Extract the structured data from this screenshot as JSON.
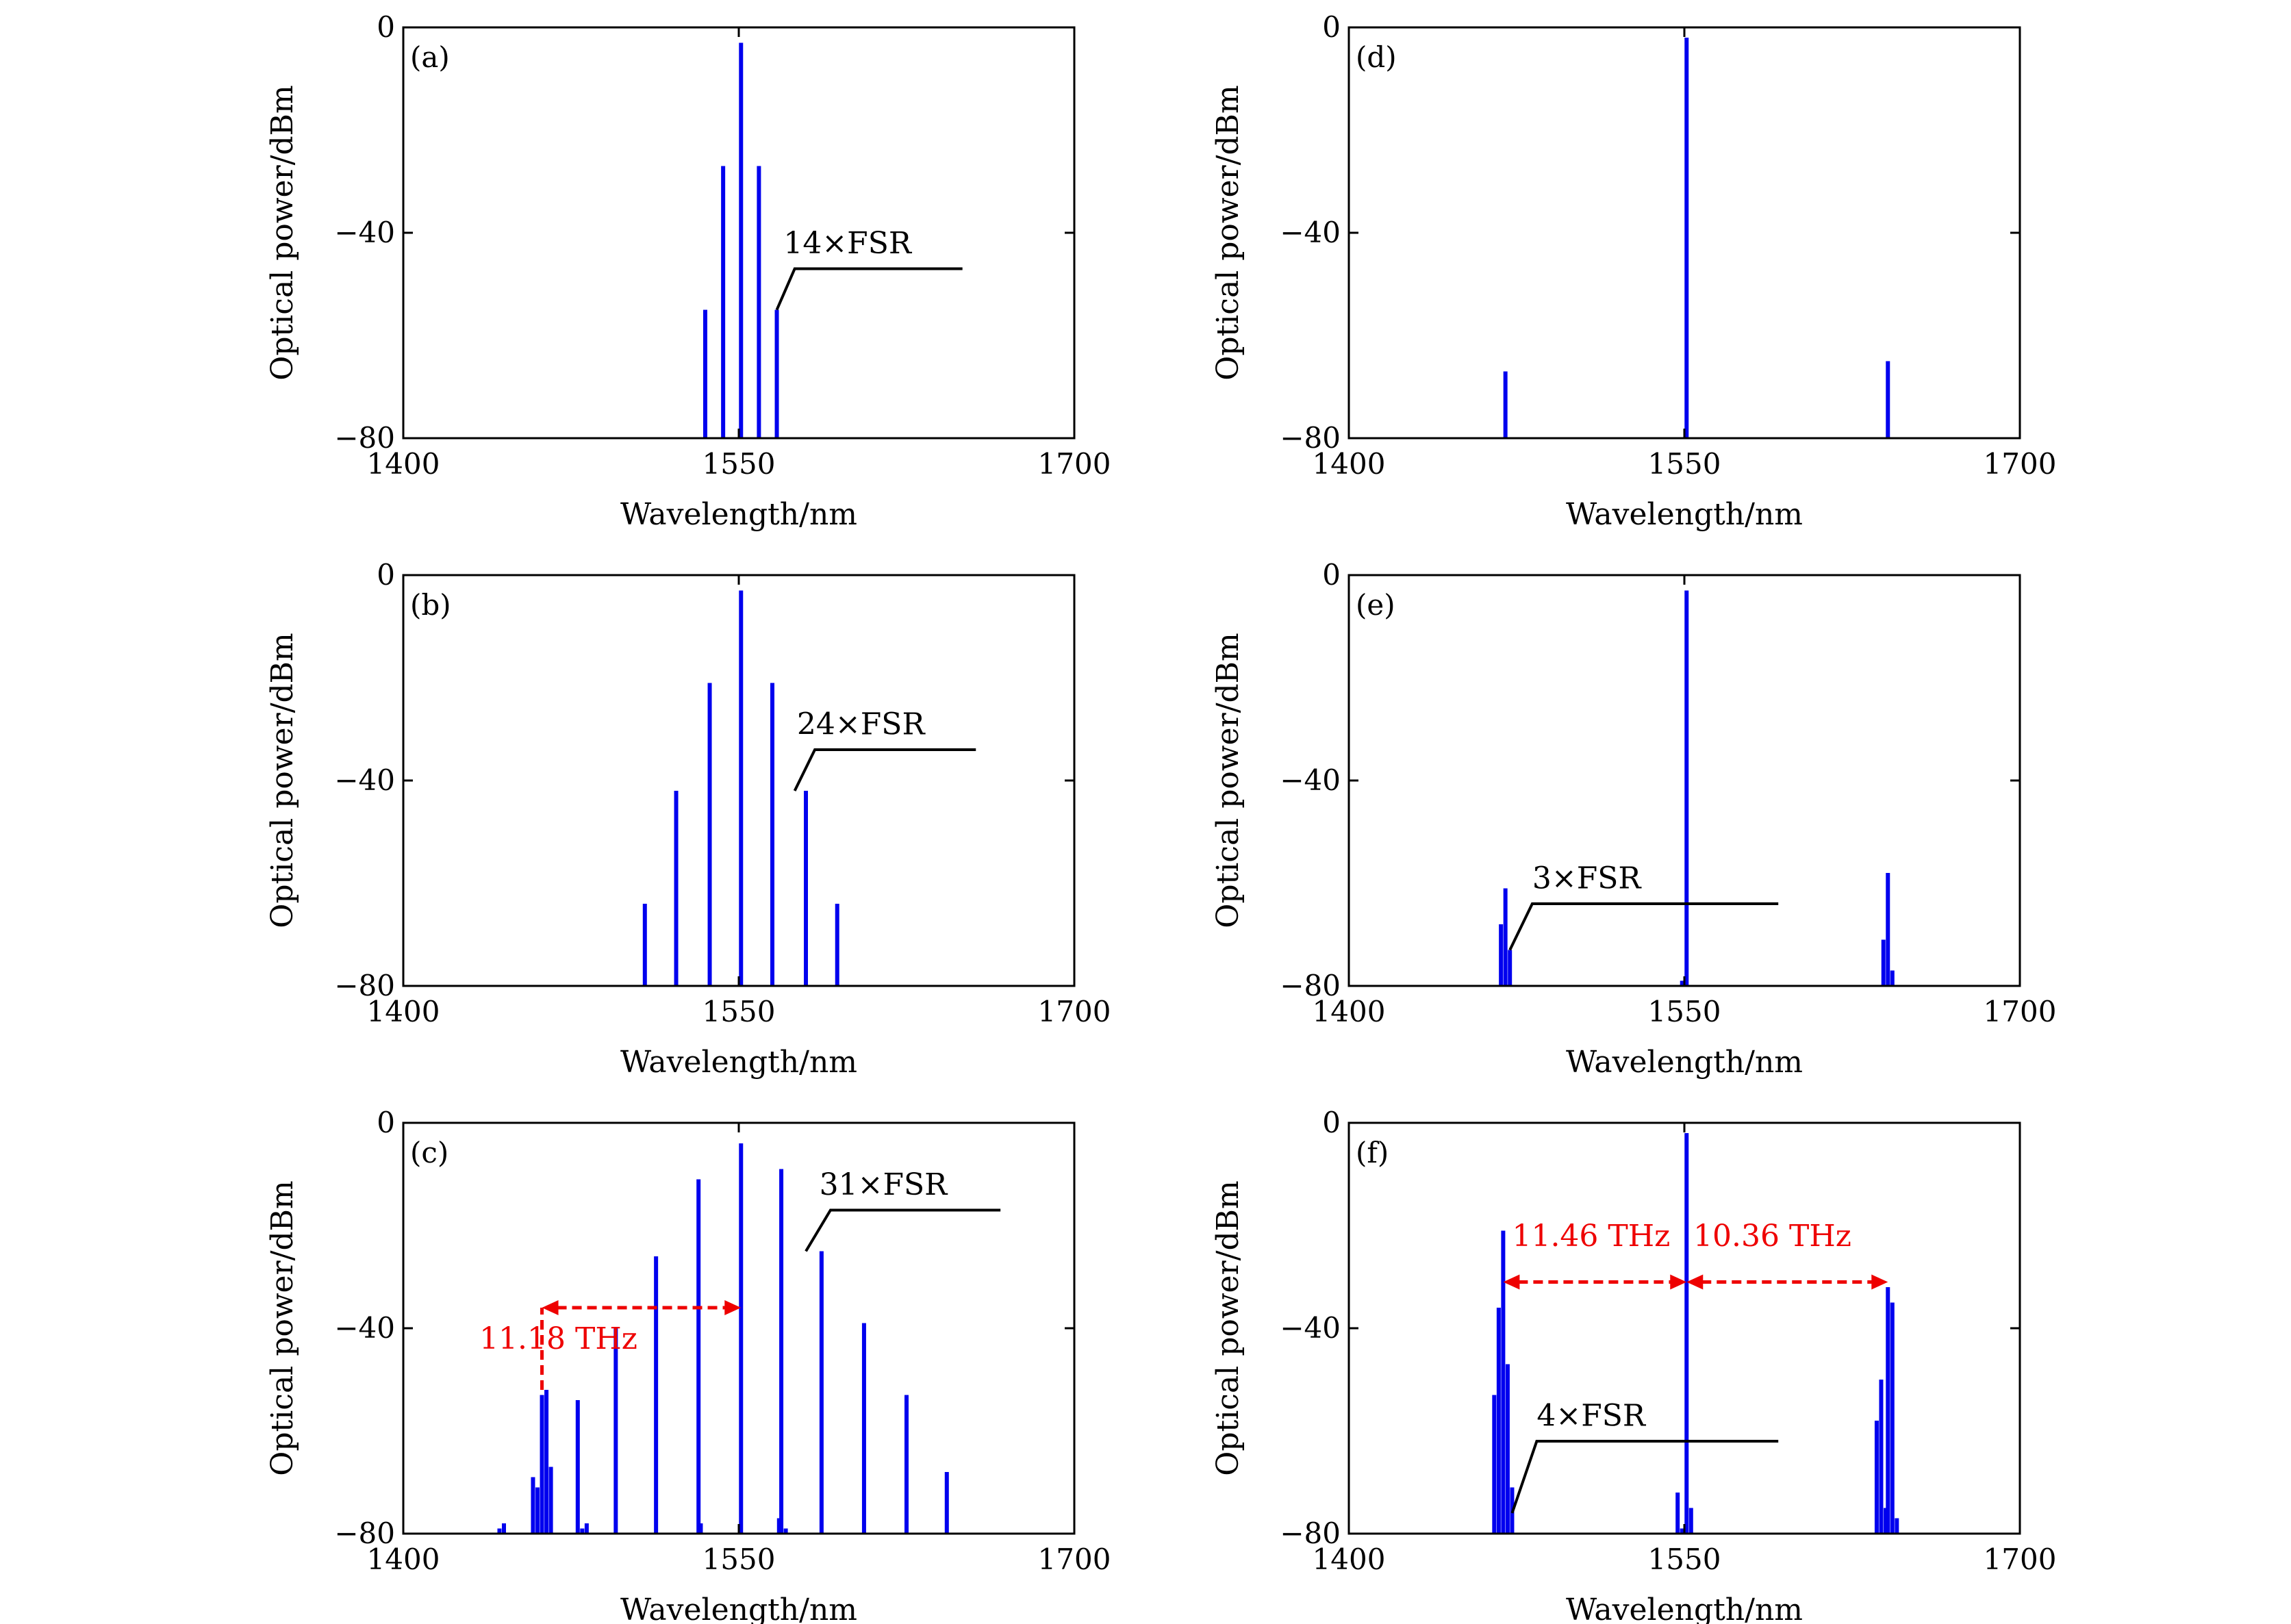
{
  "colors": {
    "bar": "#0000ee",
    "axis": "#000000",
    "spacing": "#ee0000"
  },
  "chart_data": [
    {
      "id": "a",
      "type": "bar",
      "panel_label": "(a)",
      "xlabel": "Wavelength/nm",
      "ylabel": "Optical power/dBm",
      "xlim": [
        1400,
        1700
      ],
      "ylim": [
        -80,
        0
      ],
      "xticks": [
        "1400",
        "1550",
        "1700"
      ],
      "yticks": [
        "0",
        "−40",
        "−80"
      ],
      "annotation": {
        "text": "14×FSR"
      },
      "lines": [
        [
          1535,
          -55
        ],
        [
          1543,
          -27
        ],
        [
          1551,
          -3
        ],
        [
          1559,
          -27
        ],
        [
          1567,
          -55
        ]
      ]
    },
    {
      "id": "b",
      "type": "bar",
      "panel_label": "(b)",
      "xlabel": "Wavelength/nm",
      "ylabel": "Optical power/dBm",
      "xlim": [
        1400,
        1700
      ],
      "ylim": [
        -80,
        0
      ],
      "xticks": [
        "1400",
        "1550",
        "1700"
      ],
      "yticks": [
        "0",
        "−40",
        "−80"
      ],
      "annotation": {
        "text": "24×FSR"
      },
      "lines": [
        [
          1508,
          -64
        ],
        [
          1522,
          -42
        ],
        [
          1537,
          -21
        ],
        [
          1551,
          -3
        ],
        [
          1565,
          -21
        ],
        [
          1580,
          -42
        ],
        [
          1594,
          -64
        ]
      ]
    },
    {
      "id": "c",
      "type": "bar",
      "panel_label": "(c)",
      "xlabel": "Wavelength/nm",
      "ylabel": "Optical power/dBm",
      "xlim": [
        1400,
        1700
      ],
      "ylim": [
        -80,
        0
      ],
      "xticks": [
        "1400",
        "1550",
        "1700"
      ],
      "yticks": [
        "0",
        "−40",
        "−80"
      ],
      "annotation": {
        "text": "31×FSR"
      },
      "spacings": [
        {
          "label": "11.18 THz"
        }
      ],
      "lines": [
        [
          1443,
          -79
        ],
        [
          1445,
          -78
        ],
        [
          1458,
          -69
        ],
        [
          1460,
          -71
        ],
        [
          1462,
          -53
        ],
        [
          1464,
          -52
        ],
        [
          1466,
          -67
        ],
        [
          1478,
          -54
        ],
        [
          1480,
          -79
        ],
        [
          1482,
          -78
        ],
        [
          1495,
          -40
        ],
        [
          1513,
          -26
        ],
        [
          1532,
          -11
        ],
        [
          1533,
          -78
        ],
        [
          1551,
          -4
        ],
        [
          1568,
          -77
        ],
        [
          1569,
          -9
        ],
        [
          1571,
          -79
        ],
        [
          1587,
          -25
        ],
        [
          1606,
          -39
        ],
        [
          1625,
          -53
        ],
        [
          1643,
          -68
        ]
      ]
    },
    {
      "id": "d",
      "type": "bar",
      "panel_label": "(d)",
      "xlabel": "Wavelength/nm",
      "ylabel": "Optical power/dBm",
      "xlim": [
        1400,
        1700
      ],
      "ylim": [
        -80,
        0
      ],
      "xticks": [
        "1400",
        "1550",
        "1700"
      ],
      "yticks": [
        "0",
        "−40",
        "−80"
      ],
      "lines": [
        [
          1470,
          -67
        ],
        [
          1551,
          -2
        ],
        [
          1641,
          -65
        ]
      ]
    },
    {
      "id": "e",
      "type": "bar",
      "panel_label": "(e)",
      "xlabel": "Wavelength/nm",
      "ylabel": "Optical power/dBm",
      "xlim": [
        1400,
        1700
      ],
      "ylim": [
        -80,
        0
      ],
      "xticks": [
        "1400",
        "1550",
        "1700"
      ],
      "yticks": [
        "0",
        "−40",
        "−80"
      ],
      "annotation": {
        "text": "3×FSR"
      },
      "lines": [
        [
          1468,
          -68
        ],
        [
          1470,
          -61
        ],
        [
          1472,
          -73
        ],
        [
          1549,
          -79
        ],
        [
          1551,
          -3
        ],
        [
          1639,
          -71
        ],
        [
          1641,
          -58
        ],
        [
          1643,
          -77
        ]
      ]
    },
    {
      "id": "f",
      "type": "bar",
      "panel_label": "(f)",
      "xlabel": "Wavelength/nm",
      "ylabel": "Optical power/dBm",
      "xlim": [
        1400,
        1700
      ],
      "ylim": [
        -80,
        0
      ],
      "xticks": [
        "1400",
        "1550",
        "1700"
      ],
      "yticks": [
        "0",
        "−40",
        "−80"
      ],
      "annotation": {
        "text": "4×FSR"
      },
      "spacings": [
        {
          "label": "11.46 THz"
        },
        {
          "label": "10.36 THz"
        }
      ],
      "lines": [
        [
          1465,
          -53
        ],
        [
          1467,
          -36
        ],
        [
          1469,
          -21
        ],
        [
          1471,
          -47
        ],
        [
          1473,
          -71
        ],
        [
          1547,
          -72
        ],
        [
          1549,
          -79
        ],
        [
          1551,
          -2
        ],
        [
          1553,
          -75
        ],
        [
          1636,
          -58
        ],
        [
          1638,
          -50
        ],
        [
          1640,
          -75
        ],
        [
          1641,
          -32
        ],
        [
          1643,
          -35
        ],
        [
          1645,
          -77
        ]
      ]
    }
  ]
}
